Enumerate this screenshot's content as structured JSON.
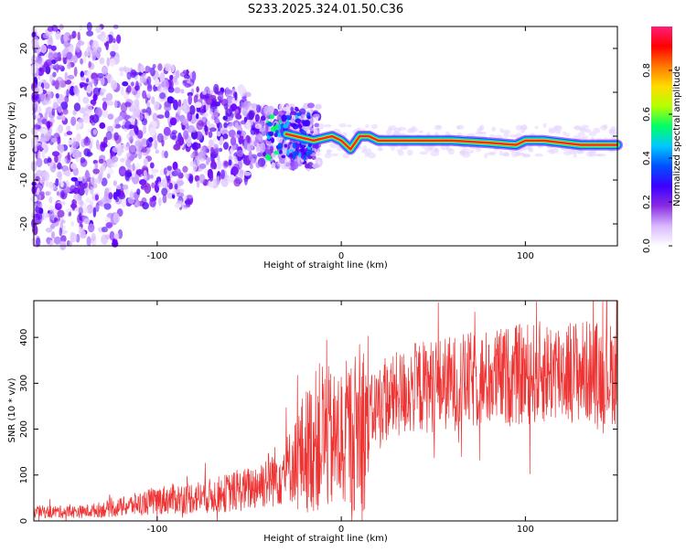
{
  "title": "S233.2025.324.01.50.C36",
  "chart_data": [
    {
      "type": "heatmap",
      "name": "spectrogram",
      "xlabel": "Height of straight line (km)",
      "ylabel": "Frequency (Hz)",
      "xlim": [
        -167,
        150
      ],
      "ylim": [
        -25,
        25
      ],
      "xticks": [
        -100,
        0,
        100
      ],
      "yticks": [
        -20,
        -10,
        0,
        10,
        20
      ],
      "colorbar": {
        "label": "Normalized spectral amplitude",
        "range": [
          0,
          1
        ],
        "ticks": [
          0.0,
          0.2,
          0.4,
          0.6,
          0.8
        ],
        "colors": [
          "#ffffff",
          "#d8b8ff",
          "#8a2be2",
          "#3b00ff",
          "#0050ff",
          "#00c8ff",
          "#00ff64",
          "#b4ff00",
          "#ffdc00",
          "#ff7800",
          "#ff0000",
          "#ff1e78"
        ]
      },
      "ridge": [
        {
          "x": -30,
          "y": 0.5
        },
        {
          "x": -15,
          "y": -1
        },
        {
          "x": -5,
          "y": 0
        },
        {
          "x": 0,
          "y": -1
        },
        {
          "x": 5,
          "y": -3
        },
        {
          "x": 10,
          "y": 0
        },
        {
          "x": 15,
          "y": 0
        },
        {
          "x": 20,
          "y": -1
        },
        {
          "x": 40,
          "y": -1
        },
        {
          "x": 60,
          "y": -1
        },
        {
          "x": 80,
          "y": -1.5
        },
        {
          "x": 95,
          "y": -2
        },
        {
          "x": 100,
          "y": -1
        },
        {
          "x": 110,
          "y": -1
        },
        {
          "x": 130,
          "y": -2
        },
        {
          "x": 150,
          "y": -2
        }
      ]
    },
    {
      "type": "line",
      "name": "snr",
      "xlabel": "Height of straight line (km)",
      "ylabel": "SNR (10 * v/v)",
      "xlim": [
        -167,
        150
      ],
      "ylim": [
        0,
        480
      ],
      "xticks": [
        -100,
        0,
        100
      ],
      "yticks": [
        0,
        100,
        200,
        300,
        400
      ],
      "color": "#ee3333",
      "envelope": [
        {
          "x": -167,
          "y": 20
        },
        {
          "x": -140,
          "y": 20
        },
        {
          "x": -120,
          "y": 30
        },
        {
          "x": -100,
          "y": 45
        },
        {
          "x": -70,
          "y": 55
        },
        {
          "x": -50,
          "y": 70
        },
        {
          "x": -30,
          "y": 110
        },
        {
          "x": -20,
          "y": 150
        },
        {
          "x": -10,
          "y": 190
        },
        {
          "x": -5,
          "y": 170
        },
        {
          "x": 0,
          "y": 180
        },
        {
          "x": 10,
          "y": 200
        },
        {
          "x": 20,
          "y": 255
        },
        {
          "x": 40,
          "y": 290
        },
        {
          "x": 60,
          "y": 300
        },
        {
          "x": 80,
          "y": 310
        },
        {
          "x": 100,
          "y": 320
        },
        {
          "x": 120,
          "y": 330
        },
        {
          "x": 150,
          "y": 320
        }
      ],
      "peaks": [
        {
          "x": -8,
          "y": 395
        },
        {
          "x": 10,
          "y": 385
        },
        {
          "x": 106,
          "y": 478
        },
        {
          "x": 147,
          "y": 395
        }
      ]
    }
  ]
}
